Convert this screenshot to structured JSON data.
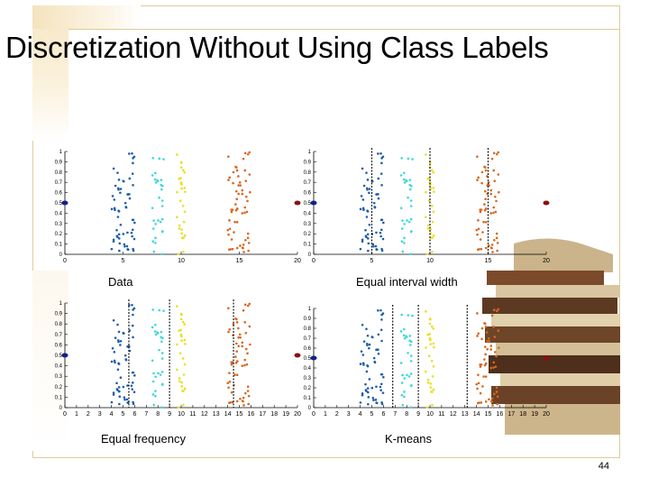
{
  "slide": {
    "title": "Discretization Without Using Class Labels",
    "page_number": "44"
  },
  "panels": [
    {
      "caption": "Data",
      "ticks": [
        "0",
        "5",
        "10",
        "15",
        "20"
      ],
      "cuts": [],
      "cut_color": []
    },
    {
      "caption": "Equal interval width",
      "ticks": [
        "0",
        "5",
        "10",
        "15",
        "20"
      ],
      "cuts": [
        5,
        10,
        15
      ],
      "cut_color": [
        "#000000",
        "#000000",
        "#000000"
      ]
    },
    {
      "caption": "Equal frequency",
      "ticks": [
        "0",
        "1",
        "2",
        "3",
        "4",
        "5",
        "6",
        "7",
        "8",
        "9",
        "10",
        "11",
        "12",
        "13",
        "14",
        "15",
        "16",
        "17",
        "18",
        "19",
        "20"
      ],
      "cuts": [
        5.5,
        9,
        14.5
      ],
      "cut_color": [
        "#000000",
        "#000000",
        "#000000"
      ]
    },
    {
      "caption": "K-means",
      "ticks": [
        "0",
        "1",
        "2",
        "3",
        "4",
        "5",
        "6",
        "7",
        "8",
        "9",
        "10",
        "11",
        "12",
        "13",
        "14",
        "15",
        "16",
        "17",
        "18",
        "19",
        "20"
      ],
      "cuts": [
        6.8,
        9,
        13.2
      ],
      "cut_color": [
        "#000000",
        "#000000",
        "#000000"
      ]
    }
  ],
  "y_ticks": [
    "0",
    "0.1",
    "0.2",
    "0.3",
    "0.4",
    "0.5",
    "0.6",
    "0.7",
    "0.8",
    "0.9",
    "1"
  ],
  "chart_data": {
    "type": "scatter",
    "xlim": [
      0,
      20
    ],
    "ylim": [
      0,
      1
    ],
    "series": [
      {
        "color": "#1f5fa8",
        "x_center": 5,
        "x_spread": 1.0,
        "points": 60
      },
      {
        "color": "#40d8d8",
        "x_center": 8,
        "x_spread": 0.5,
        "points": 30
      },
      {
        "color": "#e8e020",
        "x_center": 10,
        "x_spread": 0.4,
        "points": 30
      },
      {
        "color": "#d86820",
        "x_center": 15,
        "x_spread": 1.0,
        "points": 60
      }
    ],
    "outliers": [
      {
        "x": 0,
        "y": 0.5,
        "color": "#10208a"
      },
      {
        "x": 20,
        "y": 0.5,
        "color": "#8a1010"
      }
    ]
  }
}
